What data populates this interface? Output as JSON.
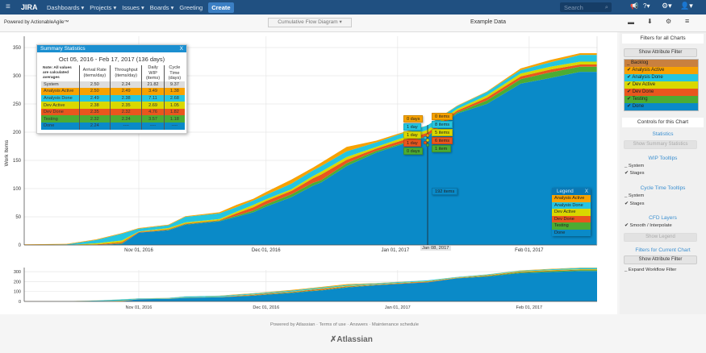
{
  "header": {
    "app": "JIRA",
    "nav": [
      "Dashboards ▾",
      "Projects ▾",
      "Issues ▾",
      "Boards ▾",
      "Greeting"
    ],
    "create": "Create",
    "search_placeholder": "Search",
    "icons": [
      "menu-icon",
      "notifications-icon",
      "help-icon",
      "gear-icon",
      "user-icon"
    ]
  },
  "subbar": {
    "powered": "Powered by ActionableAgile™",
    "chart_select": "Cumulative Flow Diagram",
    "dataset": "Example Data",
    "icons": [
      "folder-icon",
      "download-icon",
      "settings-icon",
      "hamburger-icon"
    ]
  },
  "colors": {
    "Backlog": "#c9803f",
    "Analysis Active": "#f7a200",
    "Analysis Done": "#25c5e0",
    "Dev Active": "#d9d800",
    "Dev Done": "#e9561e",
    "Testing": "#4cac33",
    "Done": "#0a8ac8"
  },
  "summary": {
    "title": "Summary Statistics",
    "close": "X",
    "range": "Oct 05, 2016 - Feb 17, 2017 (136 days)",
    "note": "Note: All values are calculated averages",
    "headers": [
      "Arrival Rate (items/day)",
      "Throughput (items/day)",
      "Daily WIP (items)",
      "Cycle Time (days)"
    ],
    "rows": [
      {
        "name": "System",
        "vals": [
          "2.50",
          "2.24",
          "21.82",
          "9.37"
        ],
        "color": "#dddddd"
      },
      {
        "name": "Analysis Active",
        "vals": [
          "2.50",
          "2.49",
          "3.49",
          "1.38"
        ],
        "color": "#f7a200"
      },
      {
        "name": "Analysis Done",
        "vals": [
          "2.49",
          "2.38",
          "7.11",
          "2.68"
        ],
        "color": "#25c5e0"
      },
      {
        "name": "Dev Active",
        "vals": [
          "2.38",
          "2.35",
          "2.69",
          "1.05"
        ],
        "color": "#d9d800"
      },
      {
        "name": "Dev Done",
        "vals": [
          "2.35",
          "2.32",
          "4.76",
          "1.82"
        ],
        "color": "#e9561e"
      },
      {
        "name": "Testing",
        "vals": [
          "2.32",
          "2.24",
          "3.57",
          "1.18"
        ],
        "color": "#4cac33"
      },
      {
        "name": "Done",
        "vals": [
          "2.24",
          "----",
          "----",
          "----"
        ],
        "color": "#0a8ac8"
      }
    ]
  },
  "tooltips": {
    "date": "Jan 08, 2017",
    "cycle": [
      "0 days",
      "1 day",
      "1 day",
      "1 day",
      "0 days"
    ],
    "wip": [
      "0 items",
      "8 items",
      "5 items",
      "6 items",
      "1 item"
    ],
    "done": "192 items"
  },
  "legend": {
    "title": "Legend",
    "close": "X",
    "items": [
      "Analysis Active",
      "Analysis Done",
      "Dev Active",
      "Dev Done",
      "Testing",
      "Done"
    ]
  },
  "chart_data": {
    "type": "area",
    "stacked": true,
    "ylabel": "Work Items",
    "ylim": [
      0,
      350
    ],
    "yticks": [
      0,
      50,
      100,
      150,
      200,
      250,
      300,
      350
    ],
    "overview_yticks": [
      0,
      100,
      200,
      300
    ],
    "xticks": [
      "Nov 01, 2016",
      "Dec 01, 2016",
      "Jan 01, 2017",
      "Feb 01, 2017"
    ],
    "grid": true,
    "x": [
      "2016-10-05",
      "2016-10-15",
      "2016-10-22",
      "2016-10-28",
      "2016-11-01",
      "2016-11-08",
      "2016-11-12",
      "2016-11-20",
      "2016-11-24",
      "2016-11-28",
      "2016-12-01",
      "2016-12-07",
      "2016-12-12",
      "2016-12-14",
      "2016-12-20",
      "2016-12-27",
      "2017-01-01",
      "2017-01-08",
      "2017-01-15",
      "2017-01-22",
      "2017-01-30",
      "2017-02-06",
      "2017-02-13",
      "2017-02-17"
    ],
    "series": [
      {
        "name": "Done",
        "values": [
          0,
          0,
          0,
          2,
          22,
          26,
          36,
          42,
          50,
          58,
          68,
          85,
          105,
          111,
          140,
          164,
          176,
          192,
          233,
          250,
          286,
          296,
          307,
          307
        ]
      },
      {
        "name": "Testing",
        "values": [
          0,
          0,
          0,
          1,
          0,
          1,
          1,
          1,
          2,
          3,
          4,
          5,
          5,
          4,
          5,
          3,
          2,
          1,
          2,
          6,
          8,
          10,
          9,
          9
        ]
      },
      {
        "name": "Dev Done",
        "values": [
          0,
          0,
          1,
          2,
          1,
          1,
          1,
          1,
          4,
          6,
          6,
          6,
          8,
          10,
          6,
          4,
          5,
          6,
          3,
          5,
          5,
          5,
          4,
          4
        ]
      },
      {
        "name": "Dev Active",
        "values": [
          0,
          0,
          2,
          3,
          1,
          2,
          2,
          2,
          3,
          4,
          3,
          3,
          4,
          5,
          5,
          3,
          4,
          5,
          3,
          4,
          5,
          5,
          5,
          5
        ]
      },
      {
        "name": "Analysis Done",
        "values": [
          0,
          1,
          6,
          12,
          5,
          5,
          10,
          10,
          8,
          8,
          8,
          10,
          10,
          10,
          10,
          8,
          8,
          8,
          5,
          6,
          6,
          8,
          12,
          12
        ]
      },
      {
        "name": "Analysis Active",
        "values": [
          1,
          1,
          1,
          1,
          1,
          1,
          1,
          2,
          4,
          3,
          5,
          7,
          5,
          6,
          8,
          3,
          2,
          0,
          1,
          1,
          3,
          4,
          3,
          3
        ]
      }
    ]
  },
  "right": {
    "filters_all": "Filters for all Charts",
    "show_attr": "Show Attribute Filter",
    "stages": [
      {
        "name": "Backlog",
        "checked": false
      },
      {
        "name": "Analysis Active",
        "checked": true
      },
      {
        "name": "Analysis Done",
        "checked": true
      },
      {
        "name": "Dev Active",
        "checked": true
      },
      {
        "name": "Dev Done",
        "checked": true
      },
      {
        "name": "Testing",
        "checked": true
      },
      {
        "name": "Done",
        "checked": true
      }
    ],
    "controls": "Controls for this Chart",
    "statistics": "Statistics",
    "show_summary": "Show Summary Statistics",
    "wip": "WIP Tooltips",
    "cycle": "Cycle Time Tooltips",
    "system": "System",
    "stages_label": "Stages",
    "cfd": "CFD Layers",
    "smooth": "Smooth / Interpolate",
    "show_legend": "Show Legend",
    "filters_current": "Filters for Current Chart",
    "show_attr2": "Show Attribute Filter",
    "expand": "Expand Workflow Filter"
  },
  "footer": {
    "links": [
      "Powered by Atlassian",
      "Terms of use",
      "Answers",
      "Maintenance schedule"
    ],
    "logo": "Atlassian"
  }
}
